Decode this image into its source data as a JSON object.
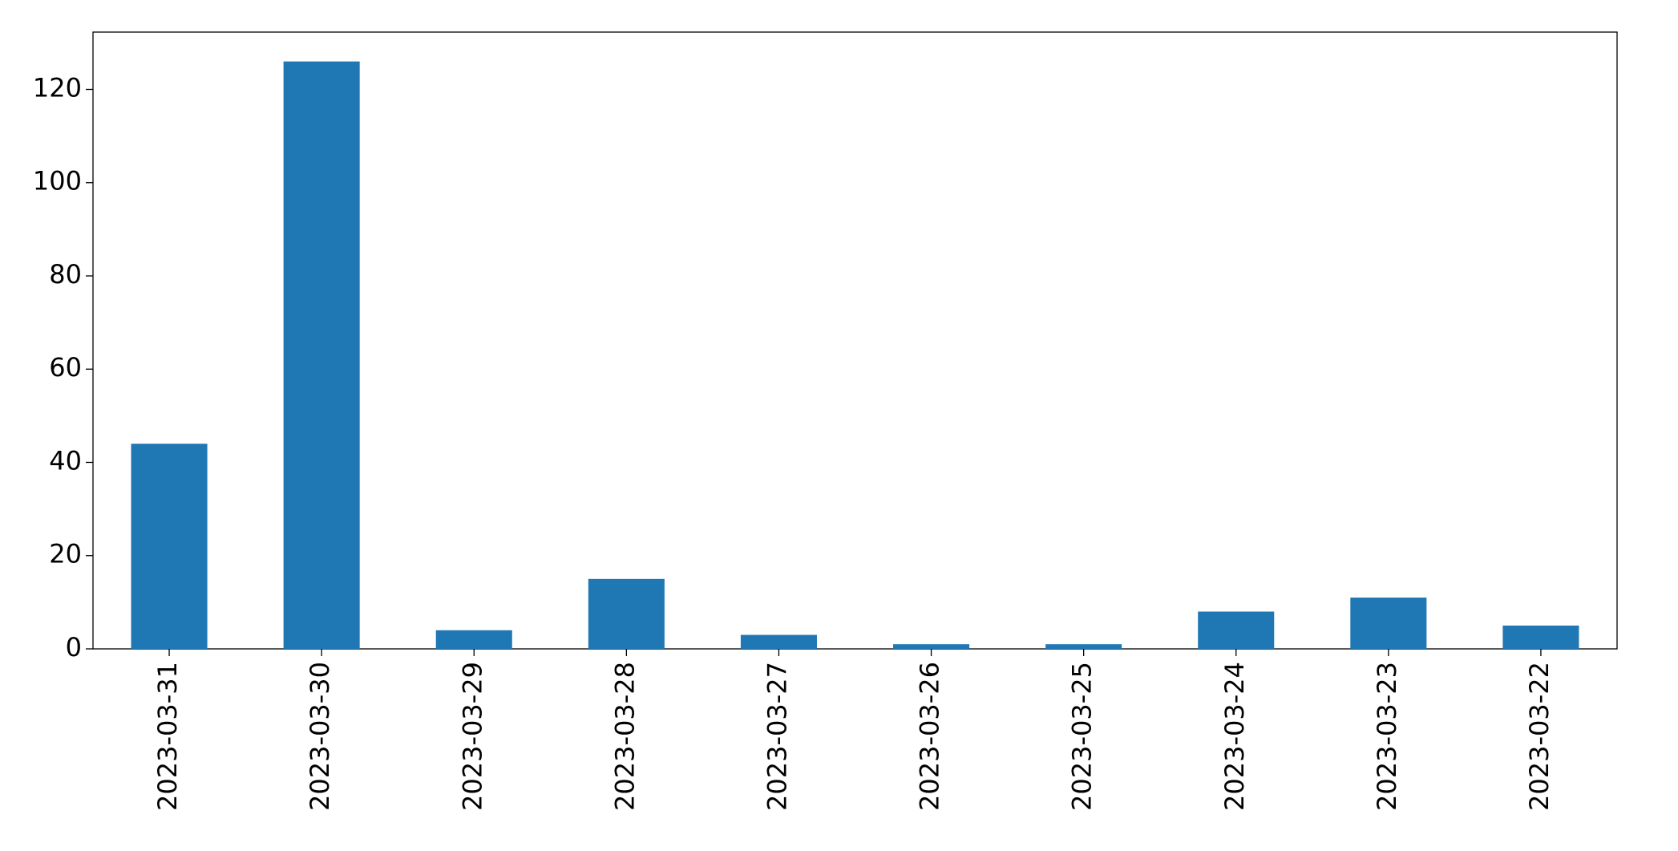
{
  "chart_data": {
    "type": "bar",
    "categories": [
      "2023-03-31",
      "2023-03-30",
      "2023-03-29",
      "2023-03-28",
      "2023-03-27",
      "2023-03-26",
      "2023-03-25",
      "2023-03-24",
      "2023-03-23",
      "2023-03-22"
    ],
    "values": [
      44,
      126,
      4,
      15,
      3,
      1,
      1,
      8,
      11,
      5
    ],
    "color": "#1f77b4",
    "ylim": [
      0,
      132.3
    ],
    "yticks": [
      0,
      20,
      40,
      60,
      80,
      100,
      120
    ],
    "grid": false
  }
}
